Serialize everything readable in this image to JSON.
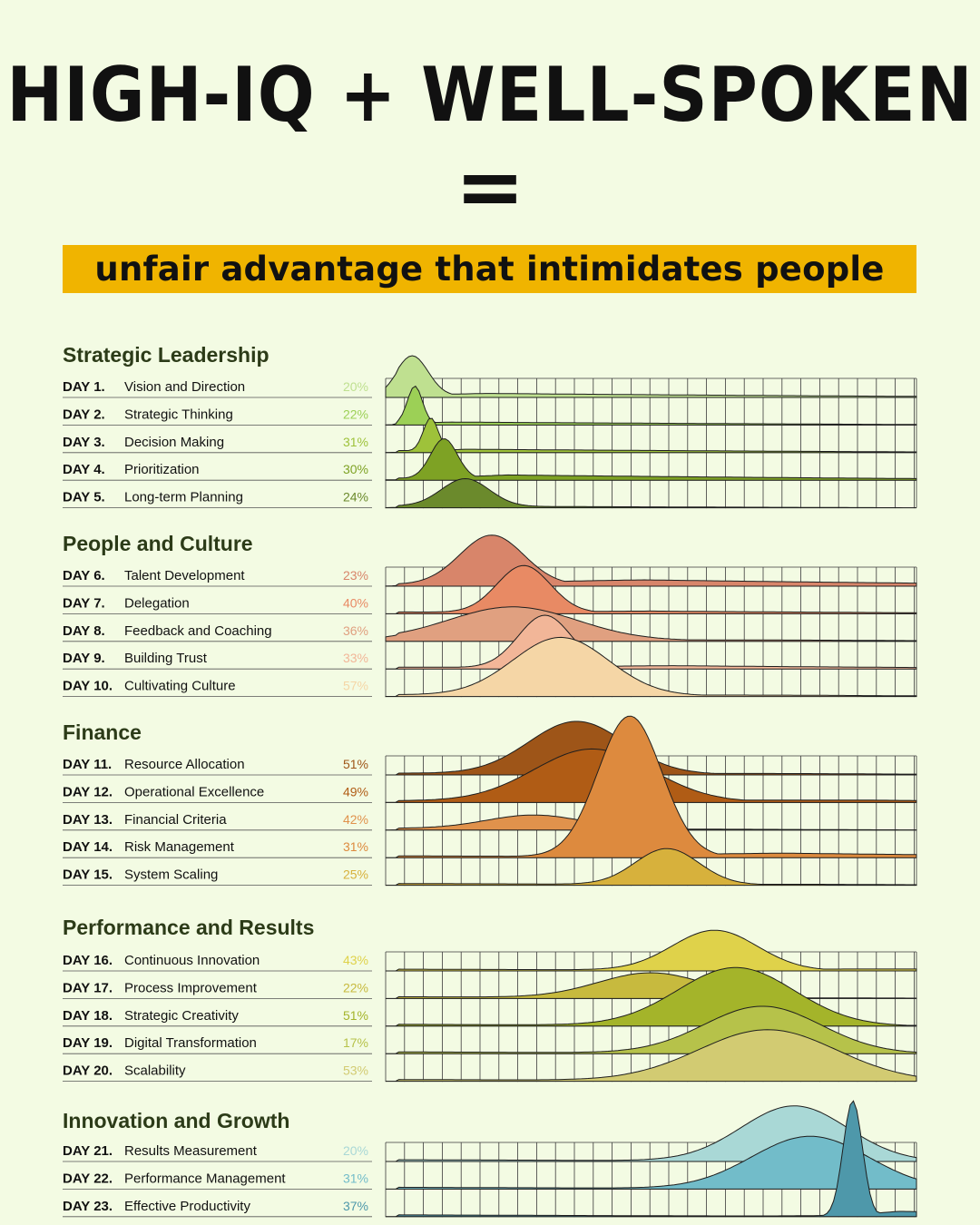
{
  "page": {
    "title": "HIGH-IQ + WELL-SPOKEN",
    "equals": "=",
    "subtitle": "unfair advantage that intimidates people"
  },
  "chart_data": {
    "type": "ridgeline",
    "grid": true,
    "groups": [
      {
        "name": "Strategic Leadership",
        "rows": [
          {
            "day": "DAY 1.",
            "label": "Vision and Direction",
            "percent": "20%",
            "color": "#bfe090",
            "peak": 0.05,
            "width": 0.03,
            "height": 1.45,
            "tail": 0.15
          },
          {
            "day": "DAY 2.",
            "label": "Strategic Thinking",
            "percent": "22%",
            "color": "#9cd056",
            "peak": 0.055,
            "width": 0.014,
            "height": 1.35,
            "tail": 0.08
          },
          {
            "day": "DAY 3.",
            "label": "Decision Making",
            "percent": "31%",
            "color": "#9ec23a",
            "peak": 0.085,
            "width": 0.014,
            "height": 1.2,
            "tail": 0.12
          },
          {
            "day": "DAY 4.",
            "label": "Prioritization",
            "percent": "30%",
            "color": "#7ea224",
            "peak": 0.11,
            "width": 0.025,
            "height": 1.45,
            "tail": 0.22
          },
          {
            "day": "DAY 5.",
            "label": "Long-term Planning",
            "percent": "24%",
            "color": "#6b8a2c",
            "peak": 0.15,
            "width": 0.045,
            "height": 1.0,
            "tail": 0.0
          }
        ]
      },
      {
        "name": "People and Culture",
        "rows": [
          {
            "day": "DAY 6.",
            "label": "Talent Development",
            "percent": "23%",
            "color": "#d8856a",
            "peak": 0.2,
            "width": 0.06,
            "height": 1.8,
            "tail": 0.3
          },
          {
            "day": "DAY 7.",
            "label": "Delegation",
            "percent": "40%",
            "color": "#e88a64",
            "peak": 0.26,
            "width": 0.05,
            "height": 1.7,
            "tail": 0.1
          },
          {
            "day": "DAY 8.",
            "label": "Feedback and Coaching",
            "percent": "36%",
            "color": "#e0a080",
            "peak": 0.24,
            "width": 0.12,
            "height": 1.2,
            "tail": 0.1
          },
          {
            "day": "DAY 9.",
            "label": "Building Trust",
            "percent": "33%",
            "color": "#f2b698",
            "peak": 0.3,
            "width": 0.05,
            "height": 1.9,
            "tail": 0.12
          },
          {
            "day": "DAY 10.",
            "label": "Cultivating Culture",
            "percent": "57%",
            "color": "#f5d6a6",
            "peak": 0.33,
            "width": 0.09,
            "height": 2.1,
            "tail": 0.05
          }
        ]
      },
      {
        "name": "Finance",
        "rows": [
          {
            "day": "DAY 11.",
            "label": "Resource Allocation",
            "percent": "51%",
            "color": "#9e5518",
            "peak": 0.36,
            "width": 0.09,
            "height": 1.9,
            "tail": 0.06
          },
          {
            "day": "DAY 12.",
            "label": "Operational Excellence",
            "percent": "49%",
            "color": "#b05c15",
            "peak": 0.39,
            "width": 0.11,
            "height": 1.9,
            "tail": 0.15
          },
          {
            "day": "DAY 13.",
            "label": "Financial Criteria",
            "percent": "42%",
            "color": "#e0924c",
            "peak": 0.28,
            "width": 0.09,
            "height": 0.5,
            "tail": 0.05
          },
          {
            "day": "DAY 14.",
            "label": "Risk Management",
            "percent": "31%",
            "color": "#dd8a3e",
            "peak": 0.46,
            "width": 0.06,
            "height": 5.1,
            "tail": 0.08
          },
          {
            "day": "DAY 15.",
            "label": "System Scaling",
            "percent": "25%",
            "color": "#d7b13c",
            "peak": 0.53,
            "width": 0.06,
            "height": 1.3,
            "tail": 0.05
          }
        ]
      },
      {
        "name": "Performance and Results",
        "rows": [
          {
            "day": "DAY 16.",
            "label": "Continuous Innovation",
            "percent": "43%",
            "color": "#dfd24a",
            "peak": 0.62,
            "width": 0.08,
            "height": 1.45,
            "tail": 0.15
          },
          {
            "day": "DAY 17.",
            "label": "Process Improvement",
            "percent": "22%",
            "color": "#c7ba3e",
            "peak": 0.5,
            "width": 0.1,
            "height": 0.9,
            "tail": 0.05
          },
          {
            "day": "DAY 18.",
            "label": "Strategic Creativity",
            "percent": "51%",
            "color": "#a4b42a",
            "peak": 0.66,
            "width": 0.11,
            "height": 2.1,
            "tail": 0.05
          },
          {
            "day": "DAY 19.",
            "label": "Digital Transformation",
            "percent": "17%",
            "color": "#b6c24a",
            "peak": 0.71,
            "width": 0.11,
            "height": 1.7,
            "tail": 0.05
          },
          {
            "day": "DAY 20.",
            "label": "Scalability",
            "percent": "53%",
            "color": "#d2cb72",
            "peak": 0.72,
            "width": 0.13,
            "height": 1.85,
            "tail": 0.05
          }
        ]
      },
      {
        "name": "Innovation and Growth",
        "rows": [
          {
            "day": "DAY 21.",
            "label": "Results Measurement",
            "percent": "20%",
            "color": "#a9d8d6",
            "peak": 0.77,
            "width": 0.1,
            "height": 2.0,
            "tail": 0.05
          },
          {
            "day": "DAY 22.",
            "label": "Performance Management",
            "percent": "31%",
            "color": "#72bcc9",
            "peak": 0.8,
            "width": 0.11,
            "height": 1.9,
            "tail": 0.05
          },
          {
            "day": "DAY 23.",
            "label": "Effective Productivity",
            "percent": "37%",
            "color": "#4e98aa",
            "peak": 0.88,
            "width": 0.018,
            "height": 4.2,
            "tail": 0.1
          }
        ]
      }
    ]
  }
}
